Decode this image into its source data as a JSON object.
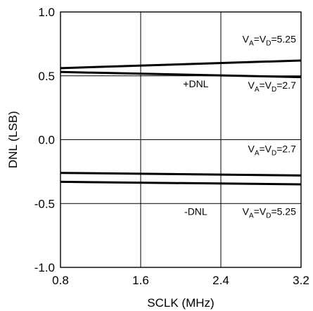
{
  "chart_data": {
    "type": "line",
    "title": "",
    "xlabel": "SCLK (MHz)",
    "ylabel": "DNL (LSB)",
    "xlim": [
      0.8,
      3.2
    ],
    "ylim": [
      -1.0,
      1.0
    ],
    "x_ticks": [
      "0.8",
      "1.6",
      "2.4",
      "3.2"
    ],
    "y_ticks": [
      "1.0",
      "0.5",
      "0.0",
      "-0.5",
      "-1.0"
    ],
    "grid": true,
    "line_color": "#000000",
    "series": [
      {
        "x": [
          0.8,
          3.2
        ],
        "y": [
          0.56,
          0.62
        ]
      },
      {
        "x": [
          0.8,
          3.2
        ],
        "y": [
          0.53,
          0.49
        ]
      },
      {
        "x": [
          0.8,
          3.2
        ],
        "y": [
          -0.26,
          -0.28
        ]
      },
      {
        "x": [
          0.8,
          3.2
        ],
        "y": [
          -0.33,
          -0.35
        ]
      }
    ],
    "annotations": {
      "pos_high": {
        "pre": "V",
        "sub1": "A",
        "mid": "=V",
        "sub2": "D",
        "post": "=5.25",
        "x": 3.15,
        "y": 0.76
      },
      "pos_label": {
        "text": "+DNL",
        "x": 2.15,
        "y": 0.41
      },
      "pos_low": {
        "pre": "V",
        "sub1": "A",
        "mid": "=V",
        "sub2": "D",
        "post": "=2.7",
        "x": 3.15,
        "y": 0.4
      },
      "neg_low": {
        "pre": "V",
        "sub1": "A",
        "mid": "=V",
        "sub2": "D",
        "post": "=2.7",
        "x": 3.15,
        "y": -0.1
      },
      "neg_label": {
        "text": "-DNL",
        "x": 2.15,
        "y": -0.59
      },
      "neg_high": {
        "pre": "V",
        "sub1": "A",
        "mid": "=V",
        "sub2": "D",
        "post": "=5.25",
        "x": 3.15,
        "y": -0.59
      }
    }
  }
}
